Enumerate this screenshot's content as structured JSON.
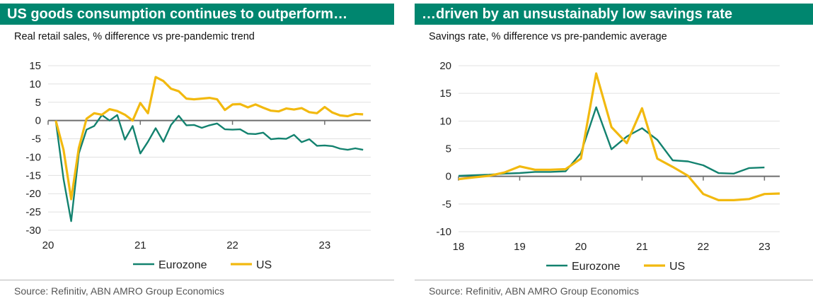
{
  "colors": {
    "header": "#00866f",
    "eurozone": "#13826f",
    "us": "#f2b90f",
    "zero_axis": "#6e6e6e",
    "grid": "#e1e1e1"
  },
  "left": {
    "title": "US goods consumption continues to outperform…",
    "subtitle": "Real retail sales, % difference vs pre-pandemic trend",
    "source": "Source: Refinitiv, ABN AMRO Group Economics"
  },
  "right": {
    "title": "…driven by an unsustainably low savings rate",
    "subtitle": "Savings rate, % difference vs pre-pandemic average",
    "source": "Source: Refinitiv, ABN AMRO Group Economics"
  },
  "chart_data": [
    {
      "type": "line",
      "title": "US goods consumption continues to outperform…",
      "subtitle": "Real retail sales, % difference vs pre-pandemic trend",
      "xlim": [
        2020.0,
        2023.5
      ],
      "ylim": [
        -30,
        15
      ],
      "y_ticks": [
        15,
        10,
        5,
        0,
        -5,
        -10,
        -15,
        -20,
        -25,
        -30
      ],
      "x_ticks": [
        {
          "value": 2020,
          "label": "20"
        },
        {
          "value": 2021,
          "label": "21"
        },
        {
          "value": 2022,
          "label": "22"
        },
        {
          "value": 2023,
          "label": "23"
        }
      ],
      "grid": true,
      "legend": "bottom",
      "series": [
        {
          "name": "Eurozone",
          "x": [
            2020.083,
            2020.167,
            2020.25,
            2020.333,
            2020.417,
            2020.5,
            2020.583,
            2020.667,
            2020.75,
            2020.833,
            2020.917,
            2021.0,
            2021.083,
            2021.167,
            2021.25,
            2021.333,
            2021.417,
            2021.5,
            2021.583,
            2021.667,
            2021.75,
            2021.833,
            2021.917,
            2022.0,
            2022.083,
            2022.167,
            2022.25,
            2022.333,
            2022.417,
            2022.5,
            2022.583,
            2022.667,
            2022.75,
            2022.833,
            2022.917,
            2023.0,
            2023.083,
            2023.167,
            2023.25,
            2023.333,
            2023.417
          ],
          "values": [
            0.0,
            -16,
            -27.5,
            -9,
            -2.5,
            -1.5,
            1.5,
            0,
            1.5,
            -5.2,
            -1.5,
            -9,
            -5.8,
            -2.1,
            -5.8,
            -1.2,
            1.3,
            -1.3,
            -1.2,
            -2.0,
            -1.3,
            -0.8,
            -2.4,
            -2.5,
            -2.4,
            -3.6,
            -3.7,
            -3.3,
            -5.1,
            -4.9,
            -5.0,
            -3.9,
            -5.9,
            -5.1,
            -6.9,
            -6.8,
            -7.0,
            -7.7,
            -8.0,
            -7.6,
            -8.0
          ]
        },
        {
          "name": "US",
          "x": [
            2020.083,
            2020.167,
            2020.25,
            2020.333,
            2020.417,
            2020.5,
            2020.583,
            2020.667,
            2020.75,
            2020.833,
            2020.917,
            2021.0,
            2021.083,
            2021.167,
            2021.25,
            2021.333,
            2021.417,
            2021.5,
            2021.583,
            2021.667,
            2021.75,
            2021.833,
            2021.917,
            2022.0,
            2022.083,
            2022.167,
            2022.25,
            2022.333,
            2022.417,
            2022.5,
            2022.583,
            2022.667,
            2022.75,
            2022.833,
            2022.917,
            2023.0,
            2023.083,
            2023.167,
            2023.25,
            2023.333,
            2023.417
          ],
          "values": [
            0.0,
            -8,
            -21.5,
            -7.5,
            0.5,
            2.0,
            1.6,
            3.1,
            2.6,
            1.6,
            0.0,
            4.8,
            2.0,
            11.9,
            10.8,
            8.7,
            8.0,
            6.0,
            5.8,
            6.0,
            6.2,
            5.8,
            2.9,
            4.4,
            4.5,
            3.6,
            4.4,
            3.5,
            2.7,
            2.5,
            3.3,
            3.0,
            3.4,
            2.3,
            2.0,
            3.7,
            2.2,
            1.4,
            1.2,
            1.8,
            1.7
          ]
        }
      ]
    },
    {
      "type": "line",
      "title": "…driven by an unsustainably low savings rate",
      "subtitle": "Savings rate, % difference vs pre-pandemic average",
      "xlim": [
        2018.0,
        2023.25
      ],
      "ylim": [
        -10,
        20
      ],
      "y_ticks": [
        20,
        15,
        10,
        5,
        0,
        -5,
        -10
      ],
      "x_ticks": [
        {
          "value": 2018,
          "label": "18"
        },
        {
          "value": 2019,
          "label": "19"
        },
        {
          "value": 2020,
          "label": "20"
        },
        {
          "value": 2021,
          "label": "21"
        },
        {
          "value": 2022,
          "label": "22"
        },
        {
          "value": 2023,
          "label": "23"
        }
      ],
      "grid": true,
      "legend": "bottom",
      "series": [
        {
          "name": "Eurozone",
          "x": [
            2018.0,
            2018.25,
            2018.5,
            2018.75,
            2019.0,
            2019.25,
            2019.5,
            2019.75,
            2020.0,
            2020.25,
            2020.5,
            2020.75,
            2021.0,
            2021.25,
            2021.5,
            2021.75,
            2022.0,
            2022.25,
            2022.5,
            2022.75,
            2023.0
          ],
          "values": [
            0.1,
            0.2,
            0.3,
            0.5,
            0.6,
            0.8,
            0.8,
            0.9,
            4.2,
            12.5,
            4.9,
            7.2,
            8.7,
            6.6,
            2.9,
            2.7,
            2.0,
            0.6,
            0.5,
            1.5,
            1.6
          ]
        },
        {
          "name": "US",
          "x": [
            2018.0,
            2018.25,
            2018.5,
            2018.75,
            2019.0,
            2019.25,
            2019.5,
            2019.75,
            2020.0,
            2020.25,
            2020.5,
            2020.75,
            2021.0,
            2021.25,
            2021.5,
            2021.75,
            2022.0,
            2022.25,
            2022.5,
            2022.75,
            2023.0,
            2023.25
          ],
          "values": [
            -0.5,
            -0.2,
            0.1,
            0.7,
            1.8,
            1.2,
            1.2,
            1.3,
            3.2,
            18.6,
            8.9,
            6.0,
            12.3,
            3.2,
            1.7,
            0.1,
            -3.2,
            -4.3,
            -4.3,
            -4.1,
            -3.2,
            -3.1
          ]
        }
      ]
    }
  ]
}
